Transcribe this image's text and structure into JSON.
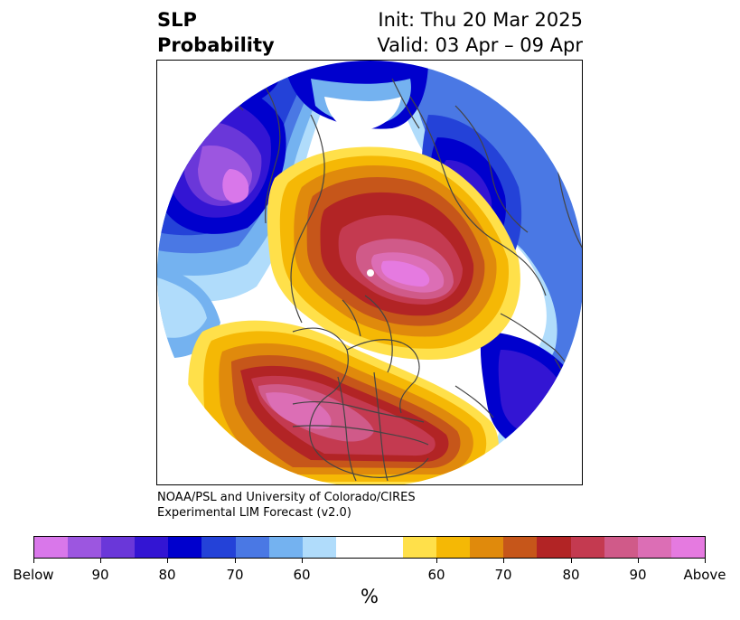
{
  "header": {
    "left_line1": "SLP",
    "left_line2": "Probability",
    "right_line1": "Init: Thu 20 Mar 2025",
    "right_line2": "Valid: 03 Apr – 09 Apr"
  },
  "credit": {
    "line1": "NOAA/PSL and University of Colorado/CIRES",
    "line2": "Experimental LIM Forecast (v2.0)"
  },
  "colorbar": {
    "unit": "%",
    "colors": [
      "#d977ea",
      "#9c56e0",
      "#6a37d9",
      "#3315d3",
      "#0000cd",
      "#2442d8",
      "#4a78e4",
      "#74b2f0",
      "#b0dcfb",
      "#ffffff",
      "#ffffff",
      "#ffe04a",
      "#f5b805",
      "#e08a0c",
      "#c6561a",
      "#b22425",
      "#c43a50",
      "#d05a89",
      "#dc6eb5",
      "#e57ae0"
    ],
    "tick_labels": [
      "Below",
      "90",
      "80",
      "70",
      "60",
      "60",
      "70",
      "80",
      "90",
      "Above"
    ]
  },
  "colors": {
    "below_extreme": "#d977ea",
    "below_strong": "#0000cd",
    "below_weak": "#b0dcfb",
    "neutral": "#ffffff",
    "above_weak": "#ffe04a",
    "above_strong": "#b22425",
    "above_extreme": "#e57ae0",
    "coastline": "#444444"
  }
}
